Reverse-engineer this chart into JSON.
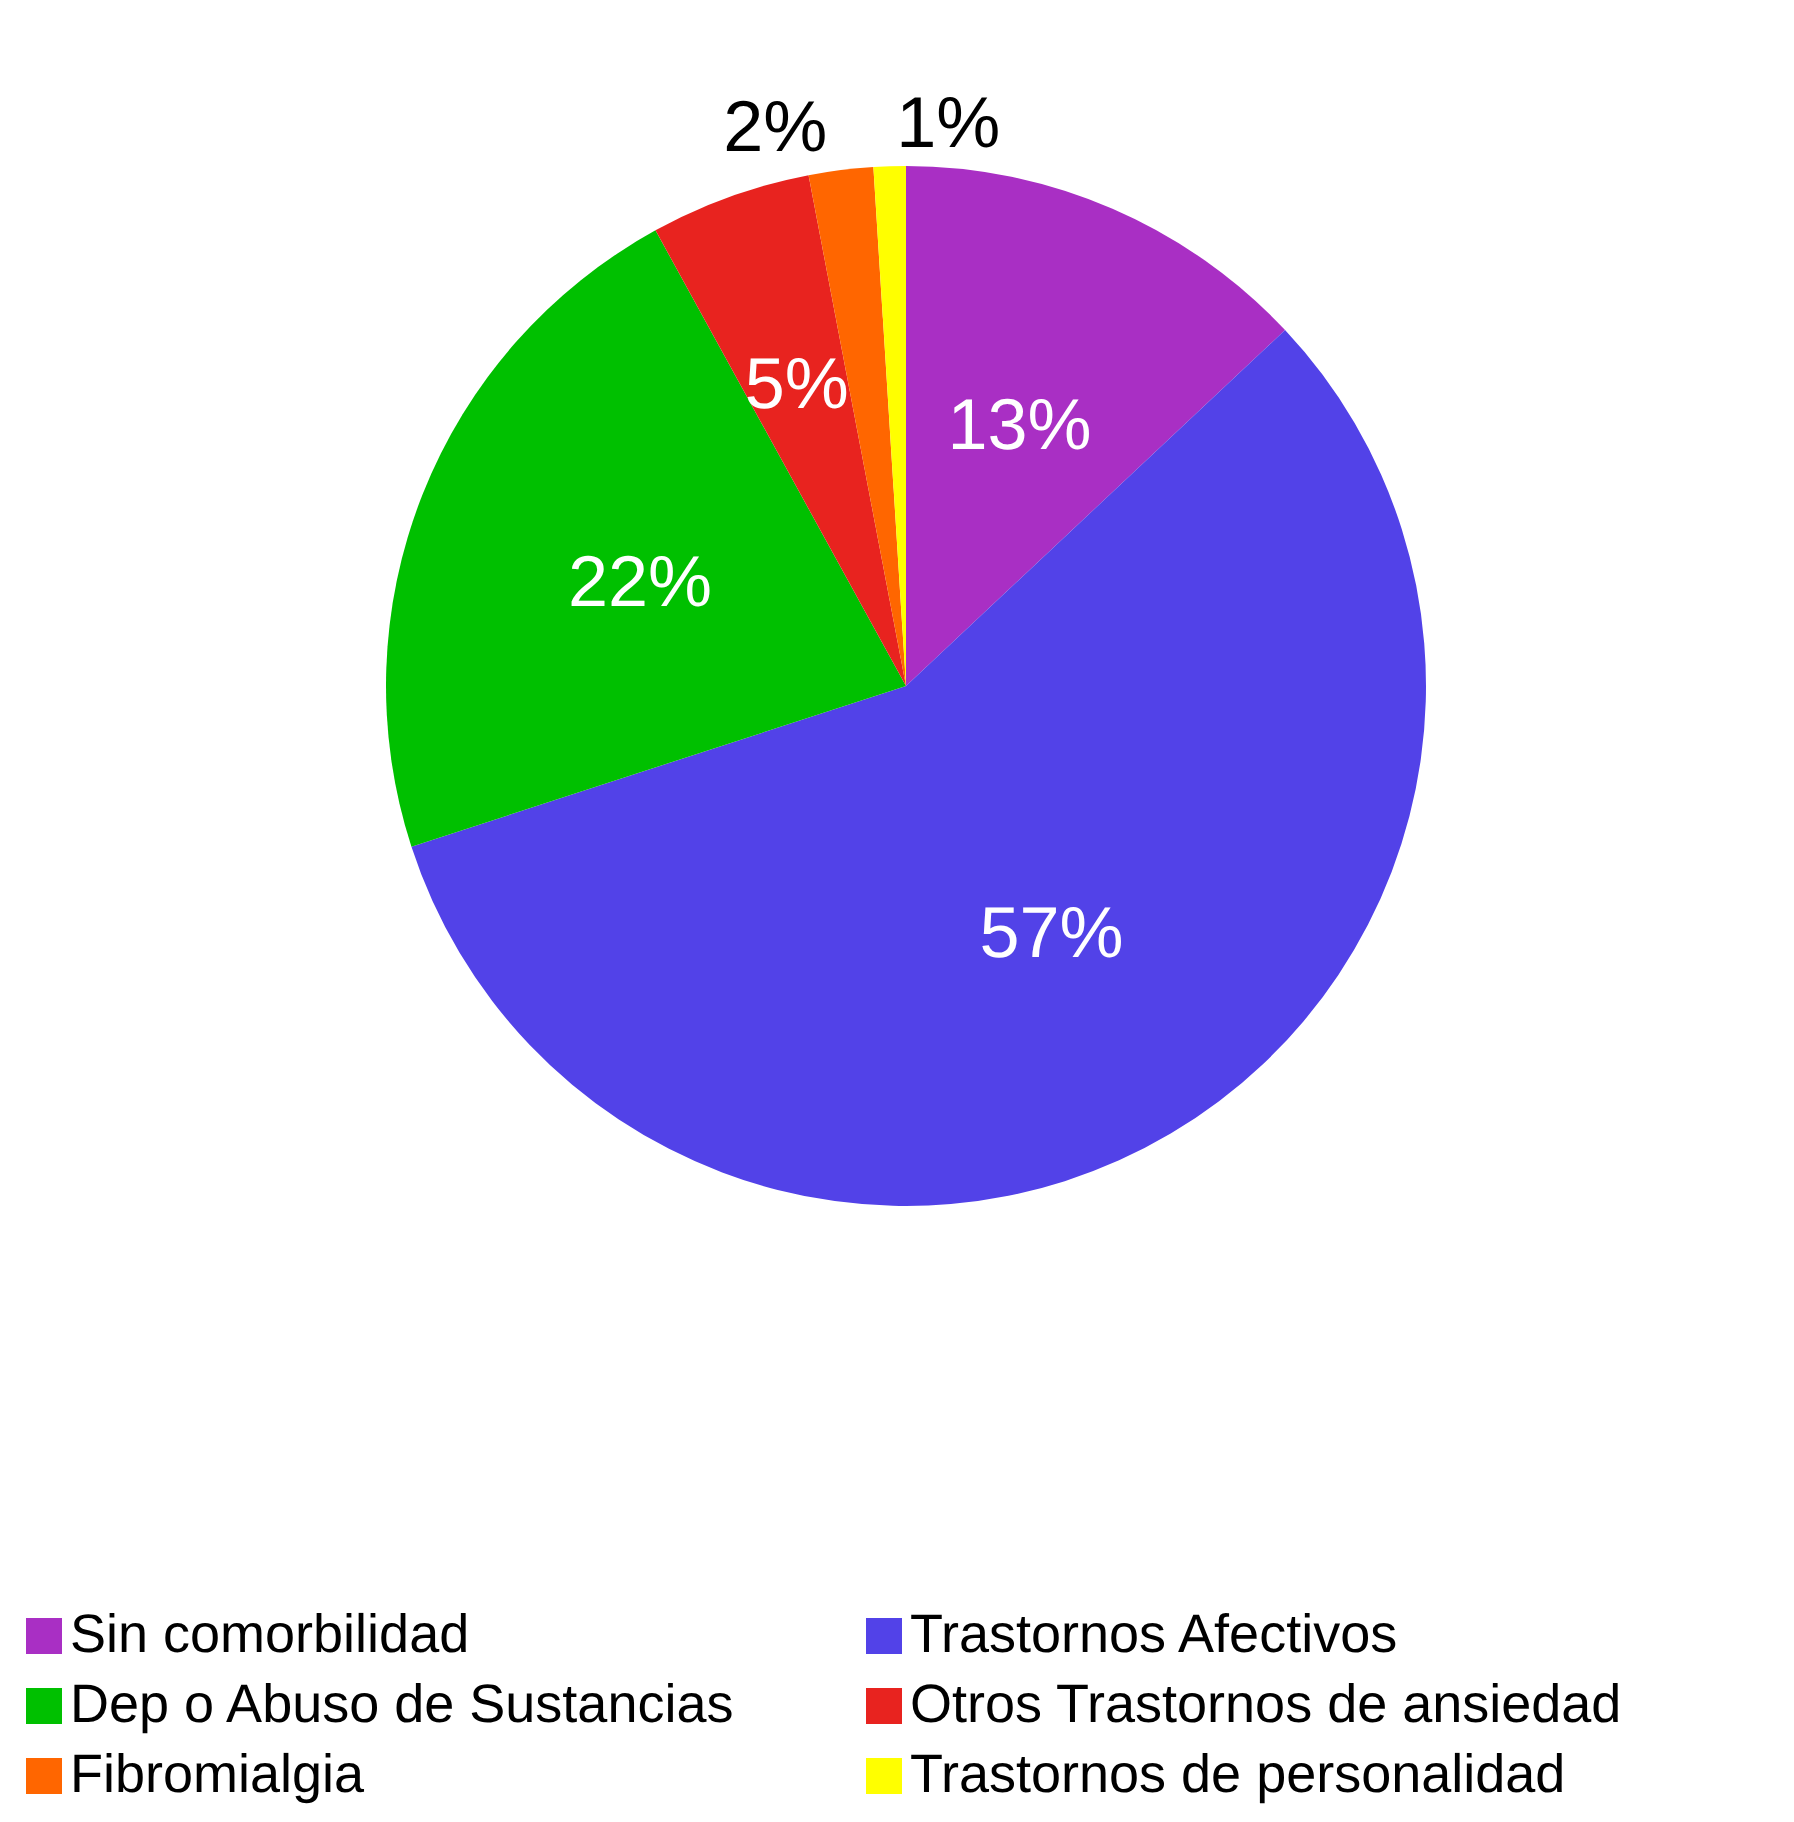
{
  "chart_data": {
    "type": "pie",
    "categories": [
      "Sin comorbilidad",
      "Trastornos Afectivos",
      "Dep o Abuso de Sustancias",
      "Otros Trastornos de ansiedad",
      "Fibromialgia",
      "Trastornos de personalidad"
    ],
    "values": [
      13,
      57,
      22,
      5,
      2,
      1
    ],
    "colors": [
      "#a92fc4",
      "#5242e8",
      "#00c000",
      "#e8231f",
      "#ff6600",
      "#ffff00"
    ],
    "value_labels": [
      "13%",
      "57%",
      "22%",
      "5%",
      "2%",
      "1%"
    ],
    "legend": "bottom"
  }
}
